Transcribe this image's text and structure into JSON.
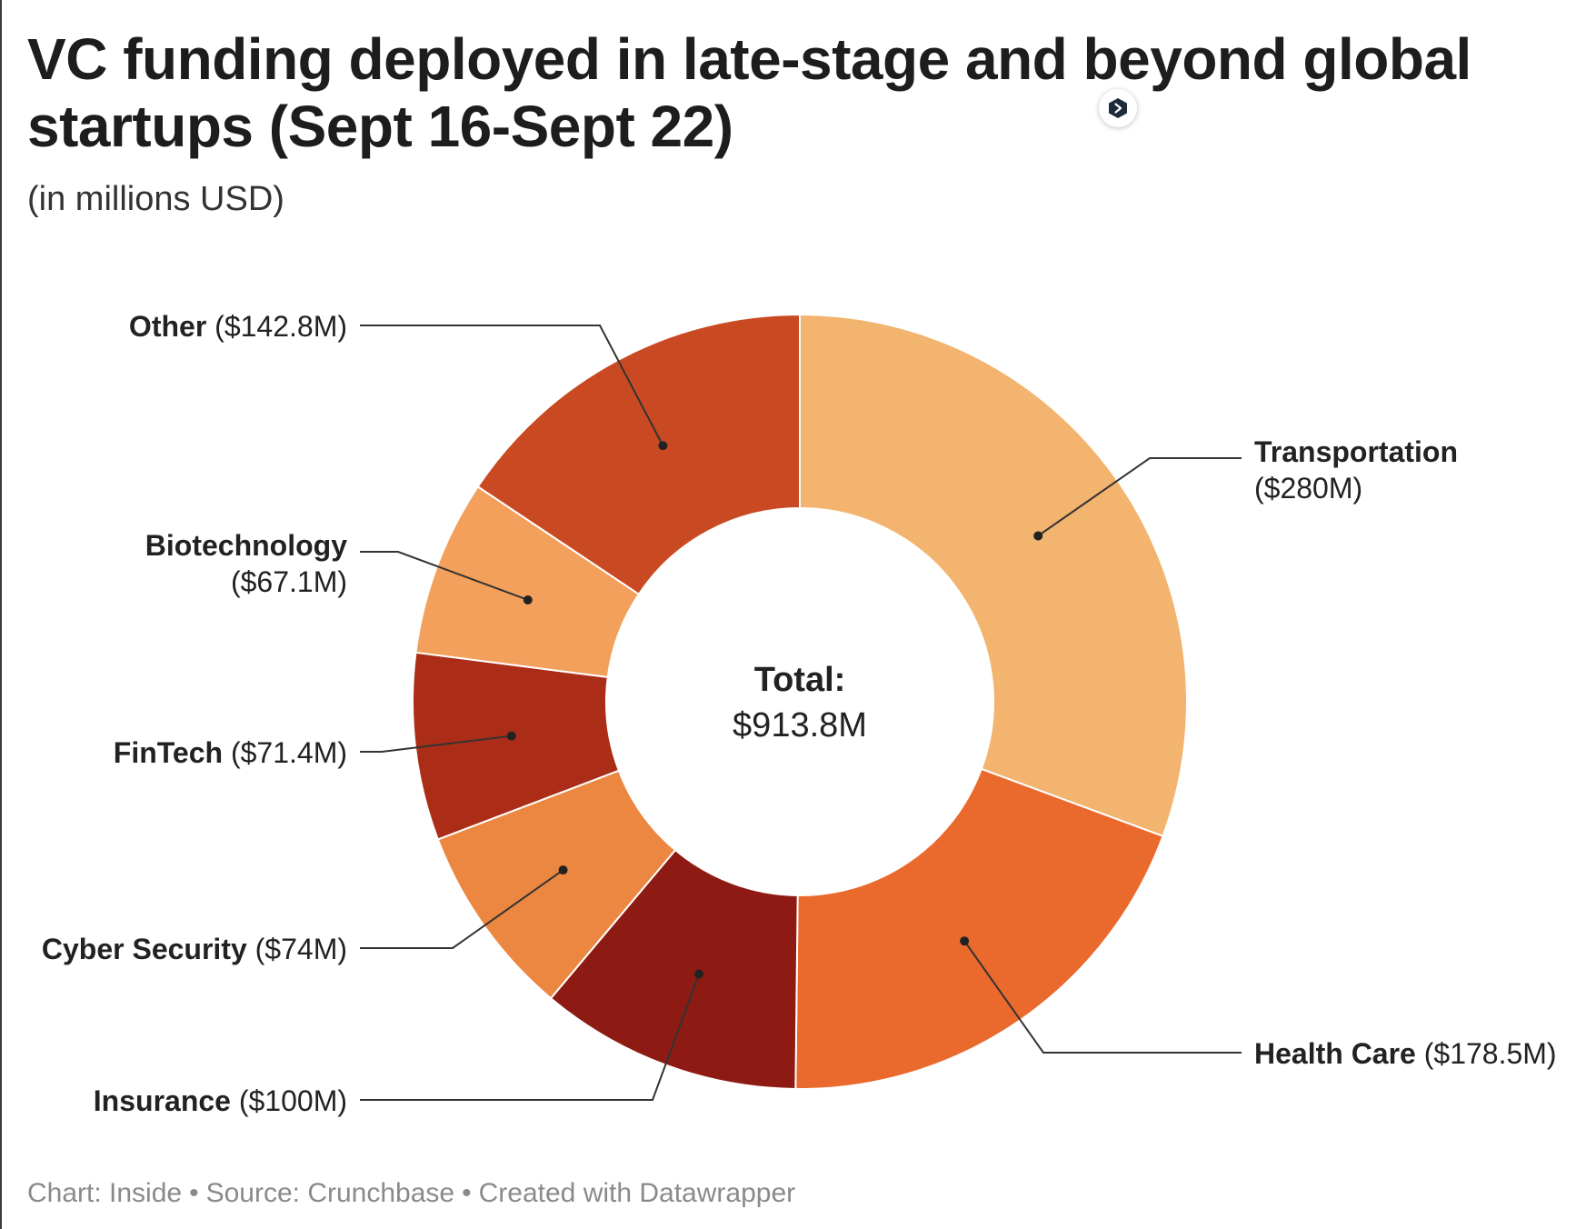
{
  "title": "VC funding deployed in late-stage and beyond global startups (Sept 16-Sept 22)",
  "subtitle": "(in millions USD)",
  "footer": {
    "chart_credit": "Chart: Inside",
    "source": "Source: Crunchbase",
    "created_with": "Created with Datawrapper",
    "separator": "•"
  },
  "badge_icon": "datawrapper-logo-icon",
  "chart_data": {
    "type": "pie",
    "variant": "donut",
    "title": "VC funding deployed in late-stage and beyond global startups (Sept 16-Sept 22)",
    "subtitle": "(in millions USD)",
    "unit": "millions USD",
    "center_label": {
      "heading": "Total:",
      "value": "$913.8M"
    },
    "slices": [
      {
        "name": "Transportation",
        "value": 280,
        "value_label": "($280M)",
        "color": "#F2B46E"
      },
      {
        "name": "Health Care",
        "value": 178.5,
        "value_label": "($178.5M)",
        "color": "#EA6A2E"
      },
      {
        "name": "Insurance",
        "value": 100,
        "value_label": "($100M)",
        "color": "#8E1B13"
      },
      {
        "name": "Cyber Security",
        "value": 74,
        "value_label": "($74M)",
        "color": "#EC8741"
      },
      {
        "name": "FinTech",
        "value": 71.4,
        "value_label": "($71.4M)",
        "color": "#AB2D17"
      },
      {
        "name": "Biotechnology",
        "value": 67.1,
        "value_label": "($67.1M)",
        "color": "#F2A05B"
      },
      {
        "name": "Other",
        "value": 142.8,
        "value_label": "($142.8M)",
        "color": "#C94A22"
      }
    ]
  }
}
